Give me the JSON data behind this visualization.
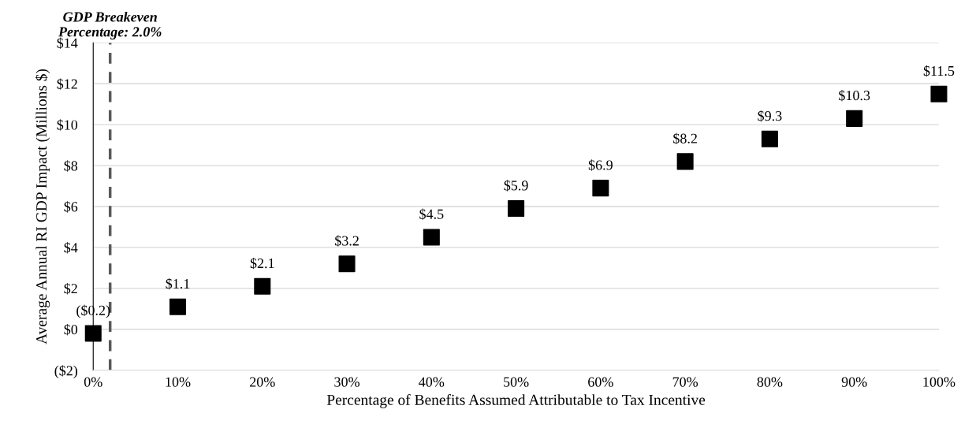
{
  "chart_data": {
    "type": "scatter",
    "xlabel": "Percentage of Benefits Assumed Attributable to Tax Incentive",
    "ylabel": "Average Annual RI GDP Impact (Millions $)",
    "x": [
      0,
      10,
      20,
      30,
      40,
      50,
      60,
      70,
      80,
      90,
      100
    ],
    "series": [
      {
        "color": "#000000",
        "values": [
          -0.2,
          1.1,
          2.1,
          3.2,
          4.5,
          5.9,
          6.9,
          8.2,
          9.3,
          10.3,
          11.5
        ],
        "value_labels": [
          "($0.2)",
          "$1.1",
          "$2.1",
          "$3.2",
          "$4.5",
          "$5.9",
          "$6.9",
          "$8.2",
          "$9.3",
          "$10.3",
          "$11.5"
        ]
      }
    ],
    "marker": "square",
    "xlim": [
      0,
      100
    ],
    "ylim": [
      -2,
      14
    ],
    "xticks": [
      {
        "value": 0,
        "label": "0%"
      },
      {
        "value": 10,
        "label": "10%"
      },
      {
        "value": 20,
        "label": "20%"
      },
      {
        "value": 30,
        "label": "30%"
      },
      {
        "value": 40,
        "label": "40%"
      },
      {
        "value": 50,
        "label": "50%"
      },
      {
        "value": 60,
        "label": "60%"
      },
      {
        "value": 70,
        "label": "70%"
      },
      {
        "value": 80,
        "label": "80%"
      },
      {
        "value": 90,
        "label": "90%"
      },
      {
        "value": 100,
        "label": "100%"
      }
    ],
    "yticks": [
      {
        "value": -2,
        "label": "($2)"
      },
      {
        "value": 0,
        "label": "$0"
      },
      {
        "value": 2,
        "label": "$2"
      },
      {
        "value": 4,
        "label": "$4"
      },
      {
        "value": 6,
        "label": "$6"
      },
      {
        "value": 8,
        "label": "$8"
      },
      {
        "value": 10,
        "label": "$10"
      },
      {
        "value": 12,
        "label": "$12"
      },
      {
        "value": 14,
        "label": "$14"
      }
    ],
    "grid": "y",
    "ref_lines": [
      {
        "axis": "x",
        "value": 2.0,
        "label": "GDP Breakeven\nPercentage: 2.0%",
        "color": "#595959",
        "line_style": "dashed"
      }
    ]
  }
}
